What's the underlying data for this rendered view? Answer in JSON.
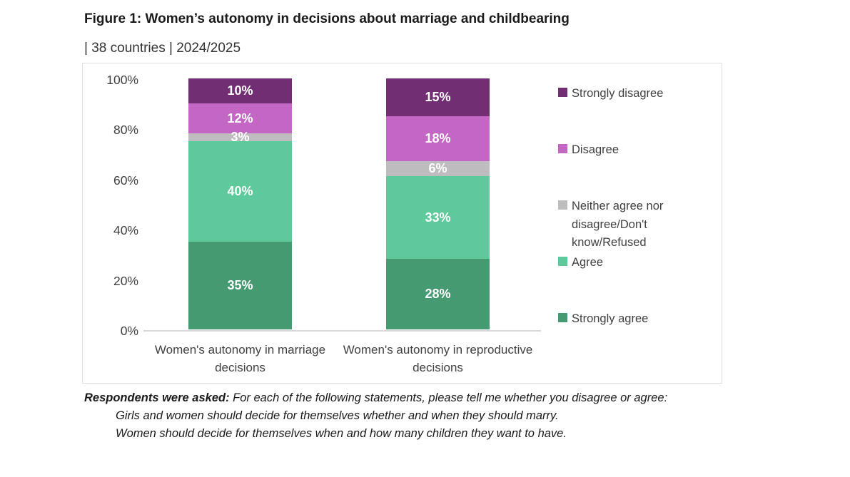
{
  "figure": {
    "title": "Figure 1: Women’s autonomy in decisions about marriage and childbearing",
    "subtitle": "| 38 countries | 2024/2025"
  },
  "chart_data": {
    "type": "bar",
    "stacked": true,
    "categories": [
      "Women's autonomy in marriage decisions",
      "Women's autonomy in reproductive decisions"
    ],
    "series": [
      {
        "name": "Strongly agree",
        "color": "#469a72",
        "values": [
          35,
          28
        ]
      },
      {
        "name": "Agree",
        "color": "#5ec99a",
        "values": [
          40,
          33
        ]
      },
      {
        "name": "Neither agree nor disagree/Don't know/Refused",
        "color": "#bfbcbf",
        "values": [
          3,
          6
        ]
      },
      {
        "name": "Disagree",
        "color": "#c466c4",
        "values": [
          12,
          18
        ]
      },
      {
        "name": "Strongly disagree",
        "color": "#722e72",
        "values": [
          10,
          15
        ]
      }
    ],
    "data_labels": {
      "Women's autonomy in marriage decisions": [
        "35%",
        "40%",
        "3%",
        "12%",
        "10%"
      ],
      "Women's autonomy in reproductive decisions": [
        "28%",
        "33%",
        "6%",
        "18%",
        "15%"
      ]
    },
    "y_ticks": [
      "0%",
      "20%",
      "40%",
      "60%",
      "80%",
      "100%"
    ],
    "ylim": [
      0,
      100
    ],
    "grid": false,
    "legend_position": "right",
    "legend_order": [
      "Strongly disagree",
      "Disagree",
      "Neither agree nor disagree/Don't know/Refused",
      "Agree",
      "Strongly agree"
    ],
    "value_suffix": "%"
  },
  "footnote": {
    "lead": "Respondents were asked:",
    "intro": " For each of the following statements, please tell me whether you disagree or agree:",
    "statements": [
      "Girls and women should decide for themselves whether and when they should marry.",
      "Women should decide for themselves when and how many children they want to have."
    ]
  }
}
